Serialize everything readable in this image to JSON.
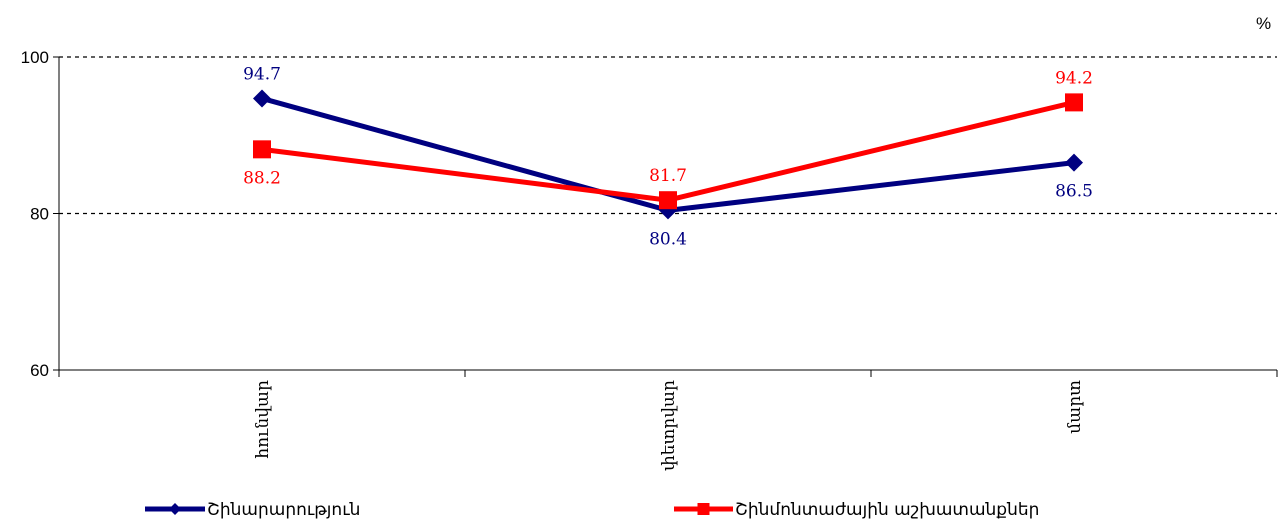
{
  "chart_data": {
    "type": "line",
    "title": "",
    "unit": "%",
    "categories": [
      "հունվար",
      "փետրվար",
      "մարտ"
    ],
    "ylim": [
      60,
      100
    ],
    "yticks": [
      60,
      80,
      100
    ],
    "grid": "horizontal dotted at 80 and 100",
    "legend_position": "bottom",
    "series": [
      {
        "name": "Շինարարություն",
        "values": [
          94.7,
          80.4,
          86.5
        ],
        "color": "#000080",
        "marker": "diamond",
        "labels": [
          "94.7",
          "80.4",
          "86.5"
        ],
        "label_position": [
          "above",
          "below",
          "below"
        ]
      },
      {
        "name": "Շինմոնտաժային աշխատանքներ",
        "values": [
          88.2,
          81.7,
          94.2
        ],
        "color": "#ff0000",
        "marker": "square",
        "labels": [
          "88.2",
          "81.7",
          "94.2"
        ],
        "label_position": [
          "below",
          "above",
          "above"
        ]
      }
    ]
  }
}
